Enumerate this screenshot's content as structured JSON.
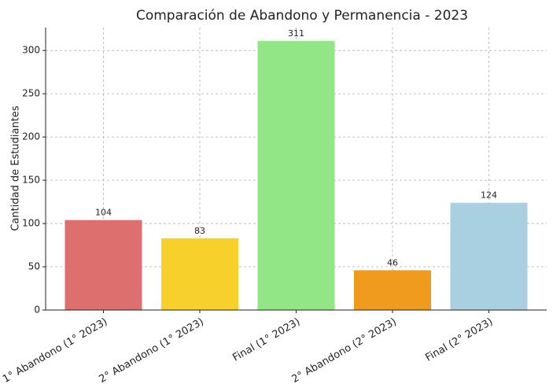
{
  "chart_data": {
    "type": "bar",
    "title": "Comparación de Abandono y Permanencia - 2023",
    "ylabel": "Cantidad de Estudiantes",
    "categories": [
      "1° Abandono (1° 2023)",
      "2° Abandono (1° 2023)",
      "Final (1° 2023)",
      "2° Abandono (2° 2023)",
      "Final (2° 2023)"
    ],
    "values": [
      104,
      83,
      311,
      46,
      124
    ],
    "colors": [
      "#de6f6f",
      "#f7d02c",
      "#92e686",
      "#f09b1e",
      "#a8d0e0"
    ],
    "ylim": [
      0,
      326.55
    ],
    "yticks": [
      0,
      50,
      100,
      150,
      200,
      250,
      300
    ],
    "grid": true
  }
}
